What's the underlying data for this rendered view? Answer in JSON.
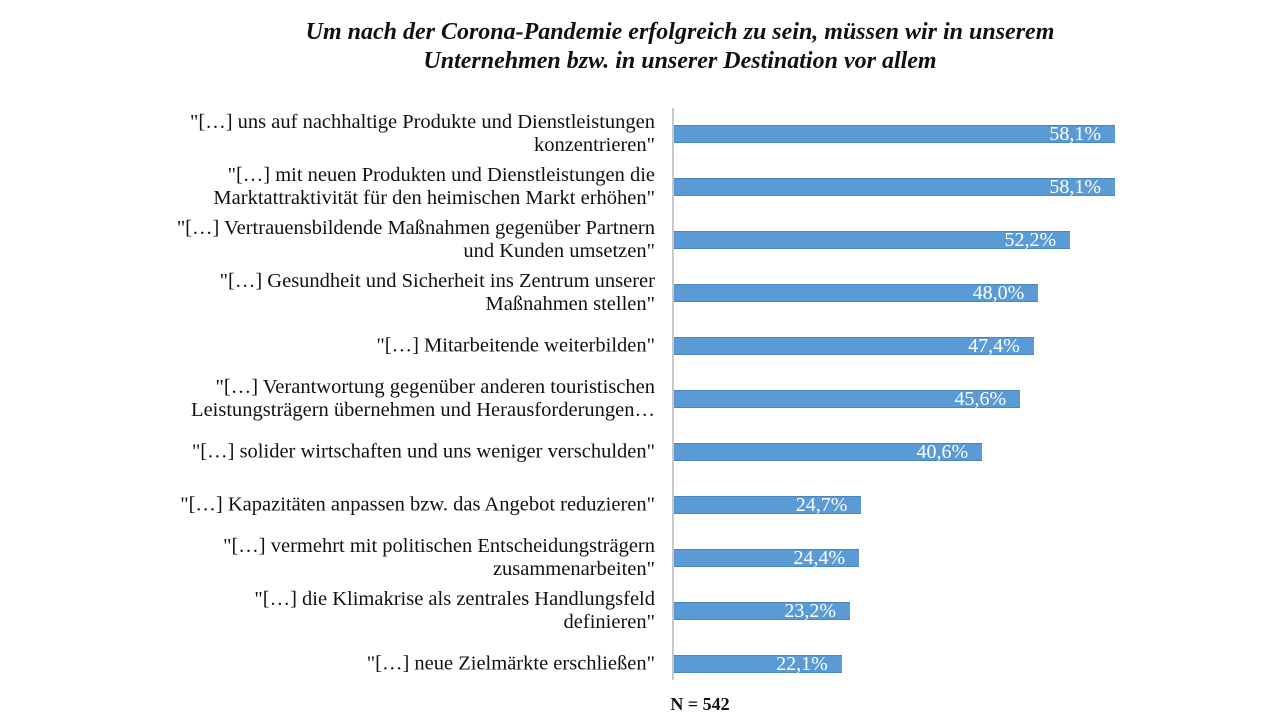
{
  "chart_data": {
    "type": "bar",
    "orientation": "horizontal",
    "title": "Um nach der Corona-Pandemie erfolgreich zu sein, müssen wir in unserem Unternehmen bzw. in unserer Destination vor allem",
    "title_lines": [
      "Um nach der Corona-Pandemie erfolgreich zu sein, müssen wir in unserem",
      "Unternehmen bzw. in unserer Destination vor allem"
    ],
    "categories": [
      "\"[…] uns auf nachhaltige Produkte und Dienstleistungen konzentrieren\"",
      "\"[…] mit neuen Produkten und Dienstleistungen die Marktattraktivität für den heimischen Markt erhöhen\"",
      "\"[…] Vertrauensbildende Maßnahmen gegenüber Partnern und Kunden umsetzen\"",
      "\"[…] Gesundheit und Sicherheit ins Zentrum unserer Maßnahmen stellen\"",
      "\"[…] Mitarbeitende weiterbilden\"",
      "\"[…] Verantwortung gegenüber anderen touristischen Leistungsträgern übernehmen und Herausforderungen…",
      "\"[…] solider wirtschaften und uns weniger verschulden\"",
      "\"[…] Kapazitäten anpassen bzw. das Angebot reduzieren\"",
      "\"[…] vermehrt mit politischen Entscheidungsträgern zusammenarbeiten\"",
      "\"[…] die Klimakrise als zentrales Handlungsfeld definieren\"",
      "\"[…] neue Zielmärkte erschließen\""
    ],
    "category_lines": [
      [
        "\"[…] uns auf nachhaltige Produkte und Dienstleistungen",
        "konzentrieren\""
      ],
      [
        "\"[…] mit neuen Produkten und Dienstleistungen die",
        "Marktattraktivität für den heimischen Markt erhöhen\""
      ],
      [
        "\"[…] Vertrauensbildende Maßnahmen gegenüber Partnern",
        "und Kunden umsetzen\""
      ],
      [
        "\"[…] Gesundheit und Sicherheit ins Zentrum unserer",
        "Maßnahmen stellen\""
      ],
      [
        "\"[…] Mitarbeitende weiterbilden\""
      ],
      [
        "\"[…] Verantwortung gegenüber anderen touristischen",
        "Leistungsträgern übernehmen und Herausforderungen…"
      ],
      [
        "\"[…] solider wirtschaften und uns weniger verschulden\""
      ],
      [
        "\"[…] Kapazitäten anpassen bzw. das Angebot reduzieren\""
      ],
      [
        "\"[…] vermehrt mit politischen Entscheidungsträgern",
        "zusammenarbeiten\""
      ],
      [
        "\"[…] die Klimakrise als zentrales Handlungsfeld",
        "definieren\""
      ],
      [
        "\"[…] neue Zielmärkte erschließen\""
      ]
    ],
    "values": [
      58.1,
      58.1,
      52.2,
      48.0,
      47.4,
      45.6,
      40.6,
      24.7,
      24.4,
      23.2,
      22.1
    ],
    "data_labels": [
      "58,1%",
      "58,1%",
      "52,2%",
      "48,0%",
      "47,4%",
      "45,6%",
      "40,6%",
      "24,7%",
      "24,4%",
      "23,2%",
      "22,1%"
    ],
    "unit": "%",
    "xlabel": "",
    "ylabel": "",
    "grid": false,
    "legend": "none",
    "bar_color": "#5b9bd5",
    "footnote": "N = 542"
  }
}
